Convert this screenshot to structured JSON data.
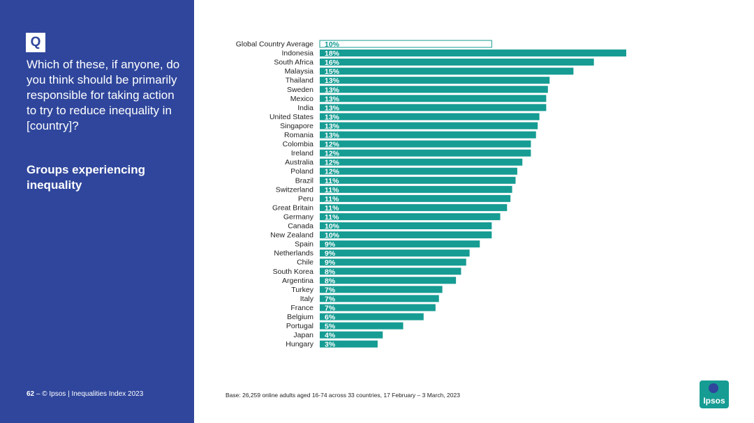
{
  "slide": {
    "badge": "Q",
    "question": "Which of these, if anyone, do you think should be primarily responsible for taking action to try to reduce inequality in [country]?",
    "subtopic": "Groups experiencing inequality",
    "page_number": "62",
    "footer_text": "– © Ipsos | Inequalities Index 2023",
    "base_note": "Base: 26,259 online adults aged 16-74 across 33 countries, 17 February – 3 March, 2023",
    "logo_text": "Ipsos"
  },
  "colors": {
    "panel": "#2f469c",
    "bar": "#169c93",
    "average_bar_outline": "#169c93"
  },
  "chart_data": {
    "type": "bar",
    "orientation": "horizontal",
    "xlim": [
      0,
      18
    ],
    "categories": [
      "Global Country Average",
      "Indonesia",
      "South Africa",
      "Malaysia",
      "Thailand",
      "Sweden",
      "Mexico",
      "India",
      "United States",
      "Singapore",
      "Romania",
      "Colombia",
      "Ireland",
      "Australia",
      "Poland",
      "Brazil",
      "Switzerland",
      "Peru",
      "Great Britain",
      "Germany",
      "Canada",
      "New Zealand",
      "Spain",
      "Netherlands",
      "Chile",
      "South Korea",
      "Argentina",
      "Turkey",
      "Italy",
      "France",
      "Belgium",
      "Portugal",
      "Japan",
      "Hungary"
    ],
    "values": [
      10.1,
      18.0,
      16.1,
      14.9,
      13.5,
      13.4,
      13.3,
      13.3,
      12.9,
      12.8,
      12.7,
      12.4,
      12.4,
      11.9,
      11.6,
      11.5,
      11.3,
      11.2,
      11.0,
      10.6,
      10.1,
      10.1,
      9.4,
      8.8,
      8.6,
      8.3,
      8.0,
      7.2,
      7.0,
      6.8,
      6.1,
      4.9,
      3.7,
      3.4
    ],
    "labels": [
      "10%",
      "18%",
      "16%",
      "15%",
      "13%",
      "13%",
      "13%",
      "13%",
      "13%",
      "13%",
      "13%",
      "12%",
      "12%",
      "12%",
      "12%",
      "11%",
      "11%",
      "11%",
      "11%",
      "11%",
      "10%",
      "10%",
      "9%",
      "9%",
      "9%",
      "8%",
      "8%",
      "7%",
      "7%",
      "7%",
      "6%",
      "5%",
      "4%",
      "3%"
    ],
    "highlight_first_as_outline": true
  }
}
